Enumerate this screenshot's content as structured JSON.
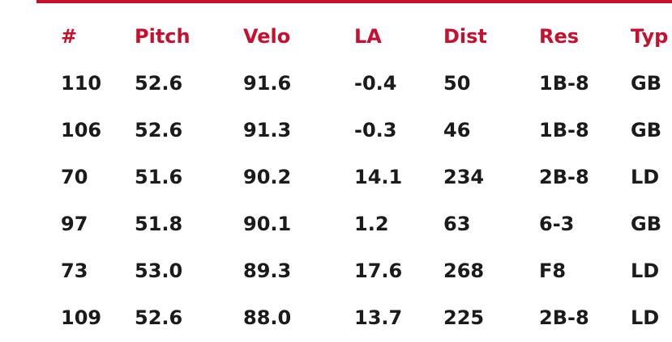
{
  "table": {
    "headers": [
      "#",
      "Pitch",
      "Velo",
      "LA",
      "Dist",
      "Res",
      "Typ"
    ],
    "rows": [
      [
        "110",
        "52.6",
        "91.6",
        "-0.4",
        "50",
        "1B-8",
        "GB"
      ],
      [
        "106",
        "52.6",
        "91.3",
        "-0.3",
        "46",
        "1B-8",
        "GB"
      ],
      [
        "70",
        "51.6",
        "90.2",
        "14.1",
        "234",
        "2B-8",
        "LD"
      ],
      [
        "97",
        "51.8",
        "90.1",
        "1.2",
        "63",
        "6-3",
        "GB"
      ],
      [
        "73",
        "53.0",
        "89.3",
        "17.6",
        "268",
        "F8",
        "LD"
      ],
      [
        "109",
        "52.6",
        "88.0",
        "13.7",
        "225",
        "2B-8",
        "LD"
      ]
    ]
  }
}
